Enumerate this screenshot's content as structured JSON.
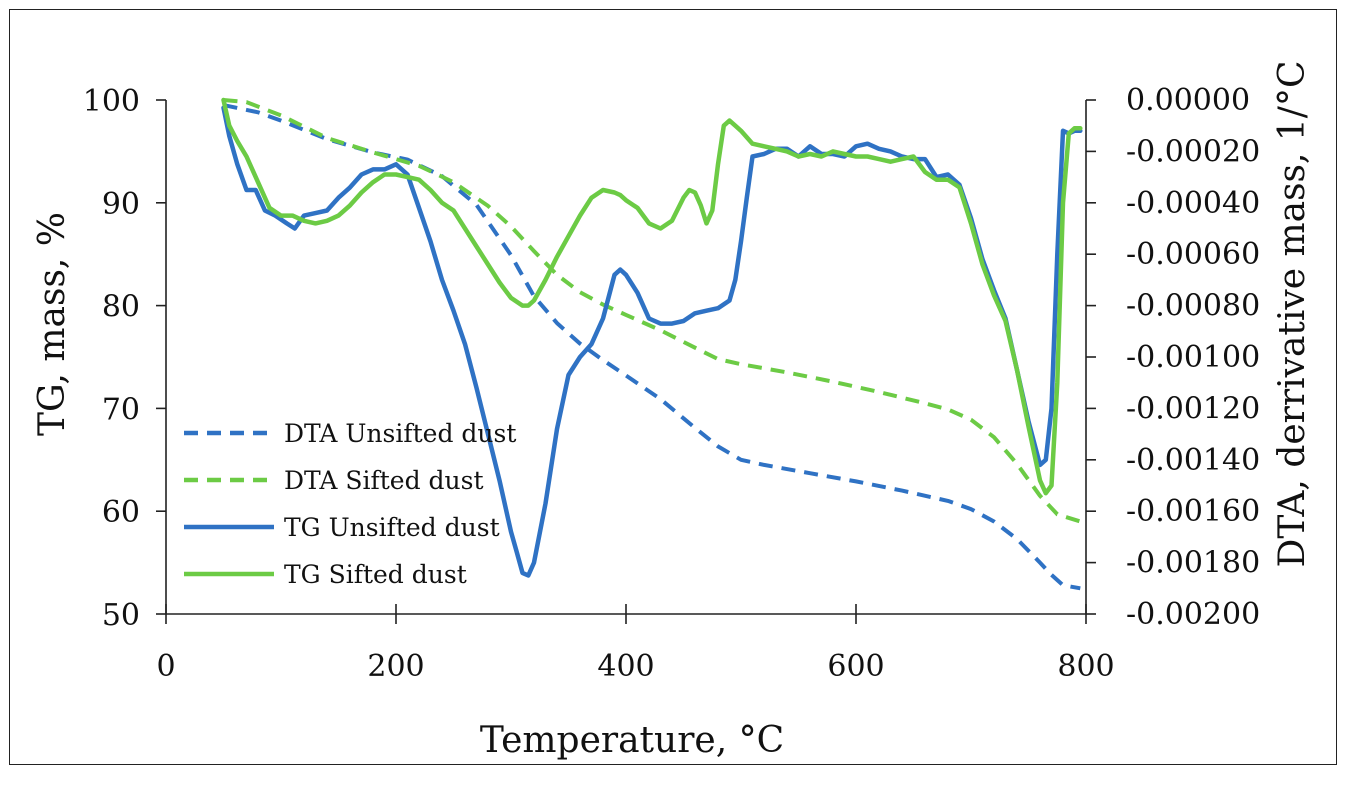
{
  "chart_data": {
    "type": "line",
    "title": "",
    "xlabel": "Temperature, °C",
    "ylabel": "TG, mass, %",
    "y2label": "DTA, derrivative mass, 1/°C",
    "xlim": [
      0,
      800
    ],
    "ylim": [
      50,
      100
    ],
    "y2lim": [
      -0.002,
      0.0
    ],
    "x_ticks": [
      "0",
      "200",
      "400",
      "600",
      "800"
    ],
    "y_ticks": [
      "100",
      "90",
      "80",
      "70",
      "60",
      "50"
    ],
    "y2_ticks": [
      "0.00000",
      "-0.00020",
      "-0.00040",
      "-0.00060",
      "-0.00080",
      "-0.00100",
      "-0.00120",
      "-0.00140",
      "-0.00160",
      "-0.00180",
      "-0.00200"
    ],
    "legend_position": "left-bottom",
    "series": [
      {
        "name": "DTA Unsifted dust",
        "axis": "left",
        "style": "dashed",
        "color": "#2f72c4",
        "x": [
          50,
          80,
          100,
          140,
          180,
          210,
          240,
          270,
          300,
          320,
          340,
          360,
          380,
          400,
          430,
          460,
          480,
          500,
          520,
          560,
          600,
          640,
          680,
          700,
          720,
          740,
          760,
          770,
          780,
          795
        ],
        "y": [
          99.5,
          98.8,
          98.0,
          96.2,
          94.9,
          94.2,
          92.6,
          89.8,
          84.9,
          80.9,
          78.3,
          76.3,
          74.7,
          73.2,
          70.9,
          68.1,
          66.3,
          65.0,
          64.5,
          63.7,
          62.9,
          62.0,
          61.0,
          60.2,
          59.0,
          57.3,
          55.0,
          53.8,
          52.8,
          52.5
        ]
      },
      {
        "name": "DTA Sifted dust",
        "axis": "left",
        "style": "dashed",
        "color": "#6ccb45",
        "x": [
          50,
          70,
          100,
          140,
          180,
          220,
          250,
          280,
          300,
          320,
          340,
          360,
          380,
          400,
          430,
          460,
          480,
          500,
          540,
          580,
          620,
          660,
          680,
          700,
          720,
          740,
          760,
          775,
          795
        ],
        "y": [
          100.0,
          99.8,
          98.5,
          96.3,
          94.9,
          93.6,
          92.0,
          89.7,
          87.7,
          85.3,
          83.0,
          81.3,
          80.1,
          79.1,
          77.6,
          75.9,
          74.8,
          74.3,
          73.5,
          72.6,
          71.6,
          70.5,
          69.9,
          68.9,
          67.2,
          64.6,
          61.5,
          59.7,
          59.0
        ]
      },
      {
        "name": "TG Unsifted dust",
        "axis": "right",
        "style": "solid",
        "color": "#2f72c4",
        "x": [
          50,
          55,
          62,
          70,
          78,
          86,
          95,
          105,
          112,
          120,
          130,
          140,
          150,
          160,
          170,
          180,
          190,
          200,
          210,
          220,
          230,
          240,
          250,
          260,
          270,
          280,
          290,
          300,
          305,
          310,
          315,
          320,
          330,
          340,
          350,
          360,
          370,
          380,
          390,
          395,
          400,
          410,
          420,
          430,
          440,
          450,
          460,
          470,
          480,
          490,
          495,
          500,
          505,
          510,
          520,
          530,
          540,
          550,
          560,
          570,
          580,
          590,
          600,
          610,
          620,
          630,
          640,
          650,
          660,
          670,
          680,
          690,
          700,
          710,
          720,
          730,
          740,
          750,
          760,
          765,
          770,
          775,
          780,
          785,
          790,
          795
        ],
        "y": [
          -3e-05,
          -0.00014,
          -0.00025,
          -0.00035,
          -0.00035,
          -0.00043,
          -0.00045,
          -0.00048,
          -0.0005,
          -0.00045,
          -0.00044,
          -0.00043,
          -0.00038,
          -0.00034,
          -0.00029,
          -0.00027,
          -0.00027,
          -0.00025,
          -0.00029,
          -0.00042,
          -0.00055,
          -0.0007,
          -0.00082,
          -0.00095,
          -0.00112,
          -0.0013,
          -0.00148,
          -0.00168,
          -0.00176,
          -0.00184,
          -0.00185,
          -0.0018,
          -0.00157,
          -0.00128,
          -0.00107,
          -0.001,
          -0.00095,
          -0.00085,
          -0.00068,
          -0.00066,
          -0.00068,
          -0.00075,
          -0.00085,
          -0.00087,
          -0.00087,
          -0.00086,
          -0.00083,
          -0.00082,
          -0.00081,
          -0.00078,
          -0.0007,
          -0.00055,
          -0.00038,
          -0.00022,
          -0.00021,
          -0.00019,
          -0.00019,
          -0.00022,
          -0.00018,
          -0.00021,
          -0.00021,
          -0.00022,
          -0.00018,
          -0.00017,
          -0.00019,
          -0.0002,
          -0.00022,
          -0.00023,
          -0.00023,
          -0.0003,
          -0.00029,
          -0.00033,
          -0.00046,
          -0.00062,
          -0.00074,
          -0.00085,
          -0.00105,
          -0.00125,
          -0.00142,
          -0.0014,
          -0.0012,
          -0.0006,
          -0.00012,
          -0.00013,
          -0.00012,
          -0.00012
        ]
      },
      {
        "name": "TG Sifted dust",
        "axis": "right",
        "style": "solid",
        "color": "#6ccb45",
        "x": [
          50,
          55,
          62,
          70,
          80,
          90,
          100,
          110,
          120,
          130,
          140,
          150,
          160,
          170,
          180,
          190,
          200,
          210,
          220,
          230,
          240,
          250,
          260,
          270,
          280,
          290,
          300,
          310,
          315,
          320,
          330,
          340,
          350,
          360,
          370,
          380,
          390,
          395,
          400,
          410,
          420,
          430,
          440,
          450,
          455,
          460,
          465,
          470,
          475,
          480,
          485,
          490,
          495,
          500,
          510,
          520,
          530,
          540,
          550,
          560,
          570,
          580,
          590,
          600,
          610,
          620,
          630,
          640,
          650,
          660,
          670,
          680,
          690,
          700,
          710,
          720,
          730,
          740,
          750,
          760,
          765,
          770,
          775,
          780,
          785,
          790,
          795
        ],
        "y": [
          0.0,
          -0.0001,
          -0.00016,
          -0.00022,
          -0.00032,
          -0.00042,
          -0.00045,
          -0.00045,
          -0.00047,
          -0.00048,
          -0.00047,
          -0.00045,
          -0.00041,
          -0.00036,
          -0.00032,
          -0.00029,
          -0.00029,
          -0.0003,
          -0.00031,
          -0.00035,
          -0.0004,
          -0.00043,
          -0.0005,
          -0.00057,
          -0.00064,
          -0.00071,
          -0.00077,
          -0.0008,
          -0.0008,
          -0.00078,
          -0.0007,
          -0.00061,
          -0.00053,
          -0.00045,
          -0.00038,
          -0.00035,
          -0.00036,
          -0.00037,
          -0.00039,
          -0.00042,
          -0.00048,
          -0.0005,
          -0.00047,
          -0.00038,
          -0.00035,
          -0.00036,
          -0.00041,
          -0.00048,
          -0.00043,
          -0.00025,
          -0.0001,
          -8e-05,
          -0.0001,
          -0.00012,
          -0.00017,
          -0.00018,
          -0.00019,
          -0.0002,
          -0.00022,
          -0.00021,
          -0.00022,
          -0.0002,
          -0.00021,
          -0.00022,
          -0.00022,
          -0.00023,
          -0.00024,
          -0.00023,
          -0.00022,
          -0.00028,
          -0.00031,
          -0.00031,
          -0.00034,
          -0.00048,
          -0.00064,
          -0.00076,
          -0.00086,
          -0.00105,
          -0.00127,
          -0.00148,
          -0.00153,
          -0.0015,
          -0.0011,
          -0.0004,
          -0.00013,
          -0.00011,
          -0.00011
        ]
      }
    ]
  }
}
